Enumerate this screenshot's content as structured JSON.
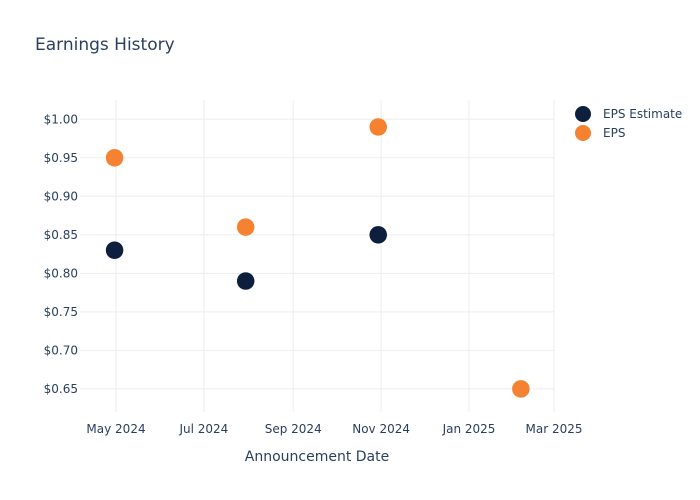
{
  "chart_data": {
    "type": "scatter",
    "title": "Earnings History",
    "xlabel": "Announcement Date",
    "ylabel": "",
    "x_ticks": [
      "May 2024",
      "Jul 2024",
      "Sep 2024",
      "Nov 2024",
      "Jan 2025",
      "Mar 2025"
    ],
    "y_ticks": [
      "$0.65",
      "$0.70",
      "$0.75",
      "$0.80",
      "$0.85",
      "$0.90",
      "$0.95",
      "$1.00"
    ],
    "xlim": [
      "2024-04-06",
      "2025-03-01"
    ],
    "ylim": [
      0.62,
      1.025
    ],
    "grid": true,
    "legend_position": "top-right",
    "series": [
      {
        "name": "EPS Estimate",
        "color": "#0d1f3c",
        "points": [
          {
            "x": "2024-04-30",
            "y": 0.83
          },
          {
            "x": "2024-07-30",
            "y": 0.79
          },
          {
            "x": "2024-10-30",
            "y": 0.85
          },
          {
            "x": "2025-02-06",
            "y": 0.65
          }
        ]
      },
      {
        "name": "EPS",
        "color": "#f58231",
        "points": [
          {
            "x": "2024-04-30",
            "y": 0.95
          },
          {
            "x": "2024-07-30",
            "y": 0.86
          },
          {
            "x": "2024-10-30",
            "y": 0.99
          },
          {
            "x": "2025-02-06",
            "y": 0.65
          }
        ]
      }
    ]
  }
}
